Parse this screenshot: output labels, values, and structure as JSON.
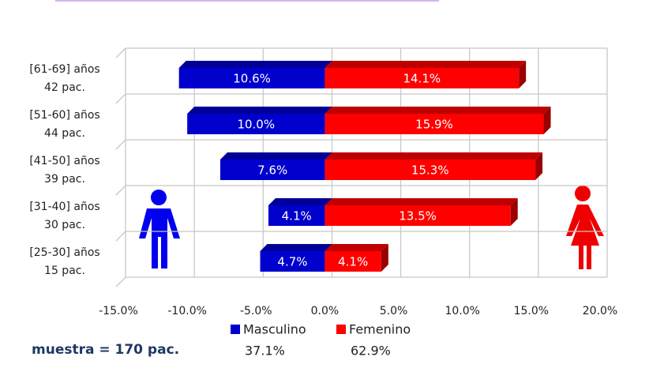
{
  "chart_data": {
    "type": "bar",
    "orientation": "horizontal",
    "stacked": "diverging",
    "categories": [
      "[61-69] años",
      "[51-60] años",
      "[41-50] años",
      "[31-40] años",
      "[25-30] años"
    ],
    "category_sublabels": [
      "42 pac.",
      "44 pac.",
      "39 pac.",
      "30 pac.",
      "15 pac."
    ],
    "series": [
      {
        "name": "Masculino",
        "color": "#0000cc",
        "values": [
          -10.6,
          -10.0,
          -7.6,
          -4.1,
          -4.7
        ],
        "value_labels": [
          "10.6%",
          "10.0%",
          "7.6%",
          "4.1%",
          "4.7%"
        ],
        "total": 37.1,
        "total_label": "37.1%"
      },
      {
        "name": "Femenino",
        "color": "#ff0000",
        "values": [
          14.1,
          15.9,
          15.3,
          13.5,
          4.1
        ],
        "value_labels": [
          "14.1%",
          "15.9%",
          "15.3%",
          "13.5%",
          "4.1%"
        ],
        "total": 62.9,
        "total_label": "62.9%"
      }
    ],
    "xlim": [
      -15,
      20
    ],
    "xticks": [
      {
        "value": -15,
        "label": "-15.0%"
      },
      {
        "value": -10,
        "label": "-10.0%"
      },
      {
        "value": -5,
        "label": "-5.0%"
      },
      {
        "value": 0,
        "label": "0.0%"
      },
      {
        "value": 5,
        "label": "5.0%"
      },
      {
        "value": 10,
        "label": "10.0%"
      },
      {
        "value": 15,
        "label": "15.0%"
      },
      {
        "value": 20,
        "label": "20.0%"
      }
    ],
    "grid": true,
    "legend": "bottom",
    "annotation": "muestra = 170 pac."
  }
}
